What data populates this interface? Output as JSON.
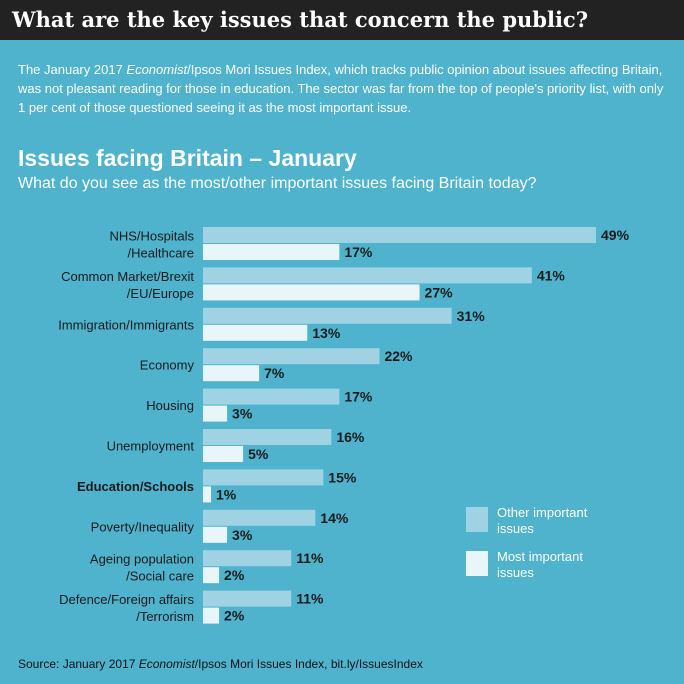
{
  "header": {
    "title": "What are the key issues that concern the public?"
  },
  "intro": {
    "pre": "The January 2017 ",
    "italic": "Economist",
    "post": "/Ipsos Mori Issues Index, which tracks public opinion about issues affecting Britain, was not pleasant reading for those in education. The sector was far from the top of people's priority list, with only 1 per cent of those questioned seeing it as the most important issue."
  },
  "source": {
    "pre": "Source: January 2017 ",
    "italic": "Economist",
    "post": "/Ipsos Mori Issues Index, bit.ly/IssuesIndex"
  },
  "colors": {
    "background": "#4fb3ce",
    "header_bg": "#222222",
    "other_important": "#9fd3e3",
    "most_important": "#e8f6f9"
  },
  "chart_data": {
    "type": "bar",
    "orientation": "horizontal",
    "title": "Issues facing Britain – January",
    "subtitle": "What do you see as the most/other important issues facing Britain today?",
    "categories": [
      [
        "NHS/Hospitals",
        "/Healthcare"
      ],
      [
        "Common Market/Brexit",
        "/EU/Europe"
      ],
      [
        "Immigration/Immigrants"
      ],
      [
        "Economy"
      ],
      [
        "Housing"
      ],
      [
        "Unemployment"
      ],
      [
        "Education/Schools"
      ],
      [
        "Poverty/Inequality"
      ],
      [
        "Ageing population",
        "/Social care"
      ],
      [
        "Defence/Foreign affairs",
        "/Terrorism"
      ]
    ],
    "highlight_category_index": 6,
    "series": [
      {
        "name": "Other important issues",
        "values": [
          49,
          41,
          31,
          22,
          17,
          16,
          15,
          14,
          11,
          11
        ],
        "labels": [
          "49%",
          "41%",
          "31%",
          "22%",
          "17%",
          "16%",
          "15%",
          "14%",
          "11%",
          "11%"
        ]
      },
      {
        "name": "Most important issues",
        "values": [
          17,
          27,
          13,
          7,
          3,
          5,
          1,
          3,
          2,
          2
        ],
        "labels": [
          "17%",
          "27%",
          "13%",
          "7%",
          "3%",
          "5%",
          "1%",
          "3%",
          "2%",
          "2%"
        ]
      }
    ],
    "legend": {
      "position": "right",
      "items": [
        [
          "Other important",
          "issues"
        ],
        [
          "Most important",
          "issues"
        ]
      ]
    },
    "xlim": [
      0,
      50
    ],
    "grid": false
  }
}
